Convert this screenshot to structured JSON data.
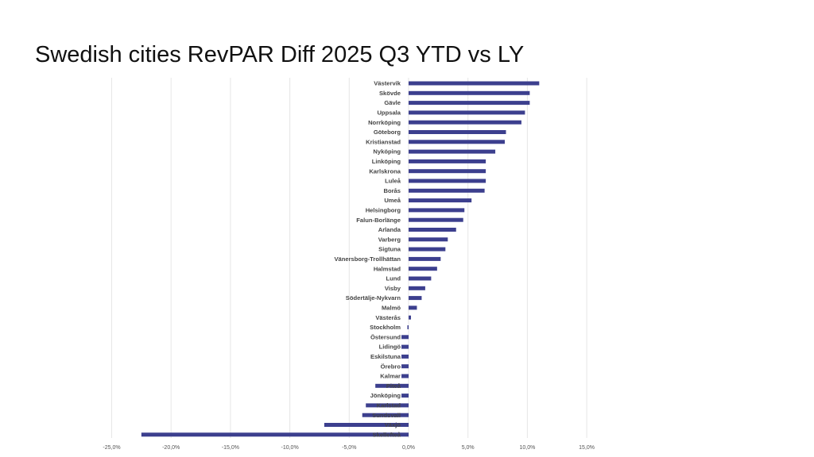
{
  "slide": {
    "title": "Swedish cities RevPAR Diff 2025 Q3 YTD vs LY"
  },
  "colors": {
    "bar": "#3c3f8e",
    "grid": "#e6e6e6",
    "label": "#444444",
    "tick": "#555555"
  },
  "chart_data": {
    "type": "bar",
    "orientation": "horizontal",
    "title": "Swedish cities RevPAR Diff 2025 Q3 YTD vs LY",
    "xlabel": "",
    "ylabel": "",
    "xlim": [
      -25,
      15
    ],
    "grid": true,
    "ticks": [
      "-25,0%",
      "-20,0%",
      "-15,0%",
      "-10,0%",
      "-5,0%",
      "0,0%",
      "5,0%",
      "10,0%",
      "15,0%"
    ],
    "tick_values": [
      -25,
      -20,
      -15,
      -10,
      -5,
      0,
      5,
      10,
      15
    ],
    "categories": [
      "Västervik",
      "Skövde",
      "Gävle",
      "Uppsala",
      "Norrköping",
      "Göteborg",
      "Kristianstad",
      "Nyköping",
      "Linköping",
      "Karlskrona",
      "Luleå",
      "Borås",
      "Umeå",
      "Helsingborg",
      "Falun-Borlänge",
      "Arlanda",
      "Varberg",
      "Sigtuna",
      "Vänersborg-Trollhättan",
      "Halmstad",
      "Lund",
      "Visby",
      "Södertälje-Nykvarn",
      "Malmö",
      "Västerås",
      "Stockholm",
      "Östersund",
      "Lidingö",
      "Eskilstuna",
      "Örebro",
      "Kalmar",
      "Piteå",
      "Jönköping",
      "Karlstad",
      "Sundsvall",
      "Växjö",
      "Skellefteå"
    ],
    "values": [
      11.0,
      10.2,
      10.2,
      9.8,
      9.5,
      8.2,
      8.1,
      7.3,
      6.5,
      6.5,
      6.5,
      6.4,
      5.3,
      4.7,
      4.6,
      4.0,
      3.3,
      3.1,
      2.7,
      2.4,
      1.9,
      1.4,
      1.1,
      0.7,
      0.2,
      -0.1,
      -0.6,
      -0.6,
      -0.6,
      -0.6,
      -0.6,
      -2.8,
      -0.6,
      -3.6,
      -3.9,
      -7.1,
      -22.5
    ]
  }
}
